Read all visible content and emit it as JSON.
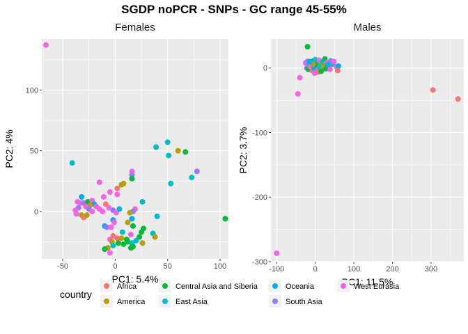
{
  "chart_title": "SGDP noPCR - SNPs - GC range 45-55%",
  "colors": {
    "Africa": "#F8766D",
    "America": "#B79F00",
    "Central Asia and Siberia": "#00BA38",
    "East Asia": "#00BFC4",
    "Oceania": "#00AEEF",
    "South Asia": "#8F7CFF",
    "West Eurasia": "#F564E3",
    "panel_bg": "#EBEBEB",
    "grid": "#FFFFFF"
  },
  "legend": {
    "title": "country",
    "items": [
      "Africa",
      "America",
      "Central Asia and Siberia",
      "East Asia",
      "Oceania",
      "South Asia",
      "West Eurasia"
    ]
  },
  "chart_data": [
    {
      "type": "scatter",
      "title": "Females",
      "xlabel": "PC1: 5.4%",
      "ylabel": "PC2: 4%",
      "xlim": [
        -70,
        108
      ],
      "ylim": [
        -39,
        142
      ],
      "xticks": [
        -50,
        0,
        50,
        100
      ],
      "yticks": [
        0,
        50,
        100
      ],
      "grid": true,
      "points": [
        {
          "x": -66,
          "y": 137,
          "group": "West Eurasia"
        },
        {
          "x": -41,
          "y": 40,
          "group": "East Asia"
        },
        {
          "x": 105,
          "y": -6,
          "group": "Central Asia and Siberia"
        },
        {
          "x": 50,
          "y": 57,
          "group": "East Asia"
        },
        {
          "x": 39,
          "y": 53,
          "group": "East Asia"
        },
        {
          "x": 60,
          "y": 50,
          "group": "America"
        },
        {
          "x": 67,
          "y": 49,
          "group": "Central Asia and Siberia"
        },
        {
          "x": 51,
          "y": 46,
          "group": "East Asia"
        },
        {
          "x": 78,
          "y": 33,
          "group": "South Asia"
        },
        {
          "x": 73,
          "y": 28,
          "group": "East Asia"
        },
        {
          "x": 53,
          "y": 23,
          "group": "East Asia"
        },
        {
          "x": 16,
          "y": 33,
          "group": "West Eurasia"
        },
        {
          "x": 16,
          "y": 30,
          "group": "South Asia"
        },
        {
          "x": 16,
          "y": 27,
          "group": "Central Asia and Siberia"
        },
        {
          "x": -15,
          "y": 24,
          "group": "West Eurasia"
        },
        {
          "x": 8,
          "y": 23,
          "group": "America"
        },
        {
          "x": 6,
          "y": 22,
          "group": "America"
        },
        {
          "x": 2,
          "y": 19,
          "group": "Africa"
        },
        {
          "x": -5,
          "y": 16,
          "group": "West Eurasia"
        },
        {
          "x": 2,
          "y": 14,
          "group": "West Eurasia"
        },
        {
          "x": -32,
          "y": 12,
          "group": "Oceania"
        },
        {
          "x": -11,
          "y": 12,
          "group": "West Eurasia"
        },
        {
          "x": -36,
          "y": 8,
          "group": "West Eurasia"
        },
        {
          "x": -33,
          "y": 7,
          "group": "West Eurasia"
        },
        {
          "x": -30,
          "y": 7,
          "group": "South Asia"
        },
        {
          "x": -26,
          "y": 8,
          "group": "Central Asia and Siberia"
        },
        {
          "x": -22,
          "y": 9,
          "group": "West Eurasia"
        },
        {
          "x": -20,
          "y": 6,
          "group": "Oceania"
        },
        {
          "x": -24,
          "y": 5,
          "group": "America"
        },
        {
          "x": -28,
          "y": 4,
          "group": "West Eurasia"
        },
        {
          "x": -35,
          "y": 3,
          "group": "South Asia"
        },
        {
          "x": -38,
          "y": 1,
          "group": "West Eurasia"
        },
        {
          "x": -37,
          "y": -2,
          "group": "West Eurasia"
        },
        {
          "x": -32,
          "y": -3,
          "group": "America"
        },
        {
          "x": -30,
          "y": -5,
          "group": "Africa"
        },
        {
          "x": -27,
          "y": -3,
          "group": "America"
        },
        {
          "x": -25,
          "y": 2,
          "group": "South Asia"
        },
        {
          "x": -22,
          "y": 0,
          "group": "West Eurasia"
        },
        {
          "x": -18,
          "y": 4,
          "group": "West Eurasia"
        },
        {
          "x": -15,
          "y": 2,
          "group": "West Eurasia"
        },
        {
          "x": -12,
          "y": 0,
          "group": "West Eurasia"
        },
        {
          "x": -9,
          "y": 6,
          "group": "Africa"
        },
        {
          "x": -6,
          "y": 3,
          "group": "West Eurasia"
        },
        {
          "x": -2,
          "y": 1,
          "group": "South Asia"
        },
        {
          "x": 1,
          "y": -1,
          "group": "West Eurasia"
        },
        {
          "x": 4,
          "y": 2,
          "group": "Oceania"
        },
        {
          "x": 26,
          "y": 8,
          "group": "East Asia"
        },
        {
          "x": 19,
          "y": 2,
          "group": "West Eurasia"
        },
        {
          "x": 17,
          "y": 0,
          "group": "South Asia"
        },
        {
          "x": 14,
          "y": -1,
          "group": "America"
        },
        {
          "x": 16,
          "y": -6,
          "group": "Oceania"
        },
        {
          "x": 12,
          "y": -9,
          "group": "America"
        },
        {
          "x": 40,
          "y": -4,
          "group": "East Asia"
        },
        {
          "x": -2,
          "y": -7,
          "group": "Oceania"
        },
        {
          "x": -1,
          "y": -9,
          "group": "West Eurasia"
        },
        {
          "x": -10,
          "y": -12,
          "group": "Oceania"
        },
        {
          "x": -8,
          "y": -13,
          "group": "South Asia"
        },
        {
          "x": -4,
          "y": -13,
          "group": "West Eurasia"
        },
        {
          "x": 17,
          "y": -12,
          "group": "Central Asia and Siberia"
        },
        {
          "x": 7,
          "y": -17,
          "group": "East Asia"
        },
        {
          "x": 27,
          "y": -14,
          "group": "Central Asia and Siberia"
        },
        {
          "x": 25,
          "y": -17,
          "group": "Central Asia and Siberia"
        },
        {
          "x": 15,
          "y": -19,
          "group": "West Eurasia"
        },
        {
          "x": 36,
          "y": -18,
          "group": "East Asia"
        },
        {
          "x": 38,
          "y": -21,
          "group": "America"
        },
        {
          "x": 23,
          "y": -21,
          "group": "Central Asia and Siberia"
        },
        {
          "x": 20,
          "y": -24,
          "group": "East Asia"
        },
        {
          "x": 11,
          "y": -23,
          "group": "Central Asia and Siberia"
        },
        {
          "x": 6,
          "y": -22,
          "group": "America"
        },
        {
          "x": 2,
          "y": -22,
          "group": "Africa"
        },
        {
          "x": -2,
          "y": -20,
          "group": "Africa"
        },
        {
          "x": -5,
          "y": -23,
          "group": "West Eurasia"
        },
        {
          "x": -3,
          "y": -25,
          "group": "America"
        },
        {
          "x": 3,
          "y": -26,
          "group": "Central Asia and Siberia"
        },
        {
          "x": 8,
          "y": -27,
          "group": "Central Asia and Siberia"
        },
        {
          "x": 12,
          "y": -25,
          "group": "Central Asia and Siberia"
        },
        {
          "x": 16,
          "y": -26,
          "group": "East Asia"
        },
        {
          "x": 17,
          "y": -29,
          "group": "Central Asia and Siberia"
        },
        {
          "x": 15,
          "y": -30,
          "group": "Central Asia and Siberia"
        },
        {
          "x": 26,
          "y": -26,
          "group": "America"
        },
        {
          "x": -2,
          "y": -28,
          "group": "East Asia"
        },
        {
          "x": -7,
          "y": -30,
          "group": "America"
        },
        {
          "x": -10,
          "y": -31,
          "group": "Central Asia and Siberia"
        },
        {
          "x": -5,
          "y": -34,
          "group": "West Eurasia"
        }
      ]
    },
    {
      "type": "scatter",
      "title": "Males",
      "xlabel": "PC1: 11.5%",
      "ylabel": "PC2: 3.7%",
      "xlim": [
        -115,
        385
      ],
      "ylim": [
        -300,
        45
      ],
      "xticks": [
        -100,
        0,
        100,
        200,
        300
      ],
      "yticks": [
        0,
        -100,
        -200,
        -300
      ],
      "grid": true,
      "points": [
        {
          "x": -100,
          "y": -287,
          "group": "West Eurasia"
        },
        {
          "x": -45,
          "y": -40,
          "group": "West Eurasia"
        },
        {
          "x": -40,
          "y": -15,
          "group": "West Eurasia"
        },
        {
          "x": 305,
          "y": -34,
          "group": "Africa"
        },
        {
          "x": 370,
          "y": -48,
          "group": "Africa"
        },
        {
          "x": -20,
          "y": 33,
          "group": "Central Asia and Siberia"
        },
        {
          "x": -25,
          "y": 8,
          "group": "West Eurasia"
        },
        {
          "x": -20,
          "y": 10,
          "group": "South Asia"
        },
        {
          "x": -15,
          "y": 5,
          "group": "East Asia"
        },
        {
          "x": -10,
          "y": 8,
          "group": "West Eurasia"
        },
        {
          "x": -5,
          "y": 11,
          "group": "Central Asia and Siberia"
        },
        {
          "x": 0,
          "y": 13,
          "group": "East Asia"
        },
        {
          "x": 5,
          "y": 9,
          "group": "Oceania"
        },
        {
          "x": 10,
          "y": 12,
          "group": "West Eurasia"
        },
        {
          "x": 15,
          "y": 7,
          "group": "America"
        },
        {
          "x": 20,
          "y": 10,
          "group": "East Asia"
        },
        {
          "x": 25,
          "y": 14,
          "group": "Central Asia and Siberia"
        },
        {
          "x": 30,
          "y": 8,
          "group": "West Eurasia"
        },
        {
          "x": 35,
          "y": 3,
          "group": "America"
        },
        {
          "x": 40,
          "y": 11,
          "group": "South Asia"
        },
        {
          "x": 45,
          "y": 6,
          "group": "East Asia"
        },
        {
          "x": 48,
          "y": 10,
          "group": "West Eurasia"
        },
        {
          "x": 55,
          "y": 2,
          "group": "West Eurasia"
        },
        {
          "x": 60,
          "y": 3,
          "group": "Oceania"
        },
        {
          "x": 58,
          "y": -4,
          "group": "Africa"
        },
        {
          "x": -22,
          "y": 0,
          "group": "South Asia"
        },
        {
          "x": -18,
          "y": -2,
          "group": "Central Asia and Siberia"
        },
        {
          "x": -12,
          "y": 2,
          "group": "West Eurasia"
        },
        {
          "x": -8,
          "y": -4,
          "group": "Africa"
        },
        {
          "x": -3,
          "y": 0,
          "group": "Oceania"
        },
        {
          "x": 2,
          "y": 4,
          "group": "Central Asia and Siberia"
        },
        {
          "x": 6,
          "y": -2,
          "group": "South Asia"
        },
        {
          "x": 12,
          "y": 2,
          "group": "East Asia"
        },
        {
          "x": 18,
          "y": -3,
          "group": "West Eurasia"
        },
        {
          "x": 22,
          "y": 3,
          "group": "America"
        },
        {
          "x": 28,
          "y": -1,
          "group": "Central Asia and Siberia"
        },
        {
          "x": 32,
          "y": 5,
          "group": "Oceania"
        },
        {
          "x": -2,
          "y": -8,
          "group": "West Eurasia"
        },
        {
          "x": 8,
          "y": -6,
          "group": "Africa"
        },
        {
          "x": 15,
          "y": -5,
          "group": "Central Asia and Siberia"
        },
        {
          "x": -6,
          "y": 6,
          "group": "America"
        },
        {
          "x": 38,
          "y": -2,
          "group": "West Eurasia"
        },
        {
          "x": -14,
          "y": 10,
          "group": "Oceania"
        }
      ]
    }
  ]
}
